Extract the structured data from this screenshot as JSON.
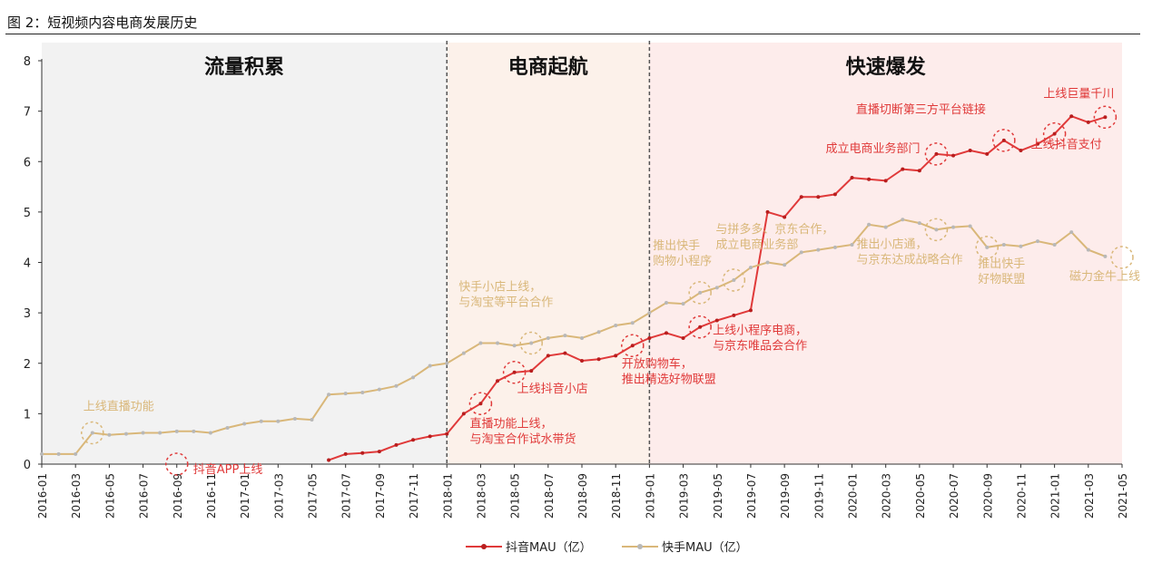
{
  "figure_title": "图 2：短视频内容电商发展历史",
  "chart_data": {
    "type": "line",
    "title": "",
    "xlabel": "",
    "ylabel": "",
    "ylim": [
      0,
      8
    ],
    "yticks": [
      "0",
      "1",
      "2",
      "3",
      "4",
      "5",
      "6",
      "7",
      "8"
    ],
    "xtick_labels": [
      "2016-01",
      "2016-03",
      "2016-05",
      "2016-07",
      "2016-09",
      "2016-11",
      "2017-01",
      "2017-03",
      "2017-05",
      "2017-07",
      "2017-09",
      "2017-11",
      "2018-01",
      "2018-03",
      "2018-05",
      "2018-07",
      "2018-09",
      "2018-11",
      "2019-01",
      "2019-03",
      "2019-05",
      "2019-07",
      "2019-09",
      "2019-11",
      "2020-01",
      "2020-03",
      "2020-05",
      "2020-07",
      "2020-09",
      "2020-11",
      "2021-01",
      "2021-03",
      "2021-05"
    ],
    "grid": false,
    "legend_position": "bottom-center",
    "phases": [
      {
        "label": "流量积累",
        "start": "2016-01",
        "end": "2018-01",
        "color": "#f2f2f2"
      },
      {
        "label": "电商起航",
        "start": "2018-01",
        "end": "2019-01",
        "color": "#fcf1ea"
      },
      {
        "label": "快速爆发",
        "start": "2019-01",
        "end": "2021-05",
        "color": "#fdeceb"
      }
    ],
    "series": [
      {
        "name": "抖音MAU（亿）",
        "color": "#e03a3a",
        "x": [
          "2017-06",
          "2017-07",
          "2017-08",
          "2017-09",
          "2017-10",
          "2017-11",
          "2017-12",
          "2018-01",
          "2018-02",
          "2018-03",
          "2018-04",
          "2018-05",
          "2018-06",
          "2018-07",
          "2018-08",
          "2018-09",
          "2018-10",
          "2018-11",
          "2018-12",
          "2019-01",
          "2019-02",
          "2019-03",
          "2019-04",
          "2019-05",
          "2019-06",
          "2019-07",
          "2019-08",
          "2019-09",
          "2019-10",
          "2019-11",
          "2019-12",
          "2020-01",
          "2020-02",
          "2020-03",
          "2020-04",
          "2020-05",
          "2020-06",
          "2020-07",
          "2020-08",
          "2020-09",
          "2020-10",
          "2020-11",
          "2020-12",
          "2021-01",
          "2021-02",
          "2021-03",
          "2021-04"
        ],
        "values": [
          0.08,
          0.2,
          0.22,
          0.25,
          0.38,
          0.48,
          0.55,
          0.6,
          1.0,
          1.2,
          1.65,
          1.82,
          1.85,
          2.15,
          2.2,
          2.05,
          2.08,
          2.15,
          2.35,
          2.5,
          2.6,
          2.5,
          2.72,
          2.85,
          2.95,
          3.05,
          5.0,
          4.9,
          5.3,
          5.3,
          5.35,
          5.68,
          5.65,
          5.62,
          5.85,
          5.82,
          6.15,
          6.12,
          6.22,
          6.15,
          6.42,
          6.22,
          6.35,
          6.55,
          6.9,
          6.78,
          6.88
        ]
      },
      {
        "name": "快手MAU（亿）",
        "color": "#d9b779",
        "x": [
          "2016-01",
          "2016-02",
          "2016-03",
          "2016-04",
          "2016-05",
          "2016-06",
          "2016-07",
          "2016-08",
          "2016-09",
          "2016-10",
          "2016-11",
          "2016-12",
          "2017-01",
          "2017-02",
          "2017-03",
          "2017-04",
          "2017-05",
          "2017-06",
          "2017-07",
          "2017-08",
          "2017-09",
          "2017-10",
          "2017-11",
          "2017-12",
          "2018-01",
          "2018-02",
          "2018-03",
          "2018-04",
          "2018-05",
          "2018-06",
          "2018-07",
          "2018-08",
          "2018-09",
          "2018-10",
          "2018-11",
          "2018-12",
          "2019-01",
          "2019-02",
          "2019-03",
          "2019-04",
          "2019-05",
          "2019-06",
          "2019-07",
          "2019-08",
          "2019-09",
          "2019-10",
          "2019-11",
          "2019-12",
          "2020-01",
          "2020-02",
          "2020-03",
          "2020-04",
          "2020-05",
          "2020-06",
          "2020-07",
          "2020-08",
          "2020-09",
          "2020-10",
          "2020-11",
          "2020-12",
          "2021-01",
          "2021-02",
          "2021-03",
          "2021-04"
        ],
        "values": [
          0.2,
          0.2,
          0.2,
          0.62,
          0.58,
          0.6,
          0.62,
          0.62,
          0.65,
          0.65,
          0.62,
          0.72,
          0.8,
          0.85,
          0.85,
          0.9,
          0.88,
          1.38,
          1.4,
          1.42,
          1.48,
          1.55,
          1.72,
          1.95,
          2.0,
          2.2,
          2.4,
          2.4,
          2.35,
          2.4,
          2.5,
          2.55,
          2.5,
          2.62,
          2.75,
          2.8,
          3.0,
          3.2,
          3.18,
          3.4,
          3.5,
          3.65,
          3.9,
          4.0,
          3.95,
          4.2,
          4.25,
          4.3,
          4.35,
          4.75,
          4.7,
          4.85,
          4.78,
          4.65,
          4.7,
          4.72,
          4.3,
          4.35,
          4.32,
          4.42,
          4.35,
          4.6,
          4.25,
          4.12
        ]
      }
    ],
    "annotations": [
      {
        "text": "上线直播功能",
        "series": 1,
        "x": "2016-04",
        "color": "#d9b779"
      },
      {
        "text": "抖音APP上线",
        "series": 0,
        "x": "2016-09",
        "color": "#e03a3a"
      },
      {
        "text": "快手小店上线，\n与淘宝等平台合作",
        "series": 1,
        "x": "2018-06",
        "color": "#d9b779"
      },
      {
        "text": "直播功能上线，\n与淘宝合作试水带货",
        "series": 0,
        "x": "2018-03",
        "color": "#e03a3a"
      },
      {
        "text": "上线抖音小店",
        "series": 0,
        "x": "2018-05",
        "color": "#e03a3a"
      },
      {
        "text": "开放购物车，\n推出精选好物联盟",
        "series": 0,
        "x": "2018-12",
        "color": "#e03a3a"
      },
      {
        "text": "上线小程序电商，\n与京东唯品会合作",
        "series": 0,
        "x": "2019-04",
        "color": "#e03a3a"
      },
      {
        "text": "推出快手\n购物小程序",
        "series": 1,
        "x": "2019-04",
        "color": "#d9b779"
      },
      {
        "text": "与拼多多、京东合作，\n成立电商业务部",
        "series": 1,
        "x": "2019-06",
        "color": "#d9b779"
      },
      {
        "text": "成立电商业务部门",
        "series": 0,
        "x": "2020-06",
        "color": "#e03a3a"
      },
      {
        "text": "直播切断第三方平台链接",
        "series": 0,
        "x": "2020-10",
        "color": "#e03a3a"
      },
      {
        "text": "上线巨量千川",
        "series": 0,
        "x": "2021-04",
        "color": "#e03a3a"
      },
      {
        "text": "上线抖音支付",
        "series": 0,
        "x": "2021-01",
        "color": "#e03a3a"
      },
      {
        "text": "推出小店通，\n与京东达成战略合作",
        "series": 1,
        "x": "2020-06",
        "color": "#d9b779"
      },
      {
        "text": "推出快手\n好物联盟",
        "series": 1,
        "x": "2020-09",
        "color": "#d9b779"
      },
      {
        "text": "磁力金牛上线",
        "series": 1,
        "x": "2021-05",
        "color": "#d9b779"
      }
    ]
  }
}
